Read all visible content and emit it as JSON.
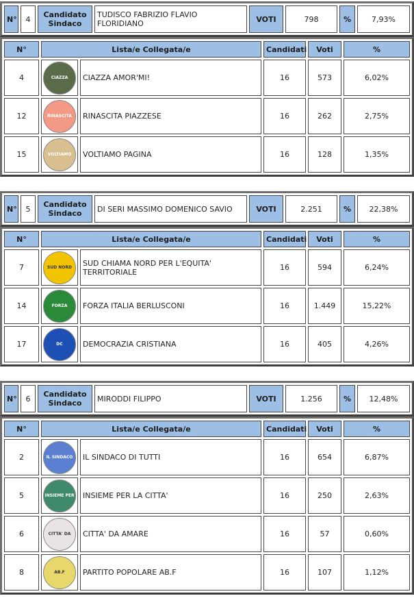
{
  "labels": {
    "num": "N°",
    "candidate": "Candidato Sindaco",
    "votes": "VOTI",
    "pct": "%",
    "list_num": "N°",
    "lists": "Lista/e Collegata/e",
    "candidates": "Candidati",
    "list_votes": "Voti",
    "list_pct": "%"
  },
  "colors": {
    "header_bg": "#9dbfe5",
    "border": "#444444",
    "frame": "#6e6e6e"
  },
  "blocks": [
    {
      "num": "4",
      "candidate": "TUDISCO FABRIZIO FLAVIO FLORIDIANO",
      "votes": "798",
      "pct": "7,93%",
      "lists": [
        {
          "num": "4",
          "name": "CIAZZA AMOR'MI!",
          "candidates": "16",
          "votes": "573",
          "pct": "6,02%",
          "logo_color": "#5a6b4a",
          "logo_text": "CIAZZA AMOR'MI"
        },
        {
          "num": "12",
          "name": "RINASCITA PIAZZESE",
          "candidates": "16",
          "votes": "262",
          "pct": "2,75%",
          "logo_color": "#f39a86",
          "logo_text": "RINASCITA PIAZZESE"
        },
        {
          "num": "15",
          "name": "VOLTIAMO PAGINA",
          "candidates": "16",
          "votes": "128",
          "pct": "1,35%",
          "logo_color": "#d9bf8f",
          "logo_text": "VOLTIAMO PAGINA"
        }
      ]
    },
    {
      "num": "5",
      "candidate": "DI SERI MASSIMO DOMENICO SAVIO",
      "votes": "2.251",
      "pct": "22,38%",
      "lists": [
        {
          "num": "7",
          "name": "SUD CHIAMA NORD PER L'EQUITA' TERRITORIALE",
          "candidates": "16",
          "votes": "594",
          "pct": "6,24%",
          "logo_color": "#f2c400",
          "logo_text": "SUD NORD"
        },
        {
          "num": "14",
          "name": "FORZA ITALIA BERLUSCONI",
          "candidates": "16",
          "votes": "1.449",
          "pct": "15,22%",
          "logo_color": "#2a8a3a",
          "logo_text": "FORZA ITALIA"
        },
        {
          "num": "17",
          "name": "DEMOCRAZIA CRISTIANA",
          "candidates": "16",
          "votes": "405",
          "pct": "4,26%",
          "logo_color": "#1e4fb5",
          "logo_text": "DC"
        }
      ]
    },
    {
      "num": "6",
      "candidate": "MIRODDI FILIPPO",
      "votes": "1.256",
      "pct": "12,48%",
      "lists": [
        {
          "num": "2",
          "name": "IL SINDACO DI TUTTI",
          "candidates": "16",
          "votes": "654",
          "pct": "6,87%",
          "logo_color": "#5b7fd0",
          "logo_text": "IL SINDACO DI TUTTI"
        },
        {
          "num": "5",
          "name": "INSIEME PER LA CITTA'",
          "candidates": "16",
          "votes": "250",
          "pct": "2,63%",
          "logo_color": "#3e8a6a",
          "logo_text": "INSIEME PER LA CITTA"
        },
        {
          "num": "6",
          "name": "CITTA' DA AMARE",
          "candidates": "16",
          "votes": "57",
          "pct": "0,60%",
          "logo_color": "#e9e2e6",
          "logo_text": "CITTA' DA AMARE"
        },
        {
          "num": "8",
          "name": "PARTITO POPOLARE AB.F",
          "candidates": "16",
          "votes": "107",
          "pct": "1,12%",
          "logo_color": "#e8d76a",
          "logo_text": "AB.F"
        }
      ]
    }
  ]
}
